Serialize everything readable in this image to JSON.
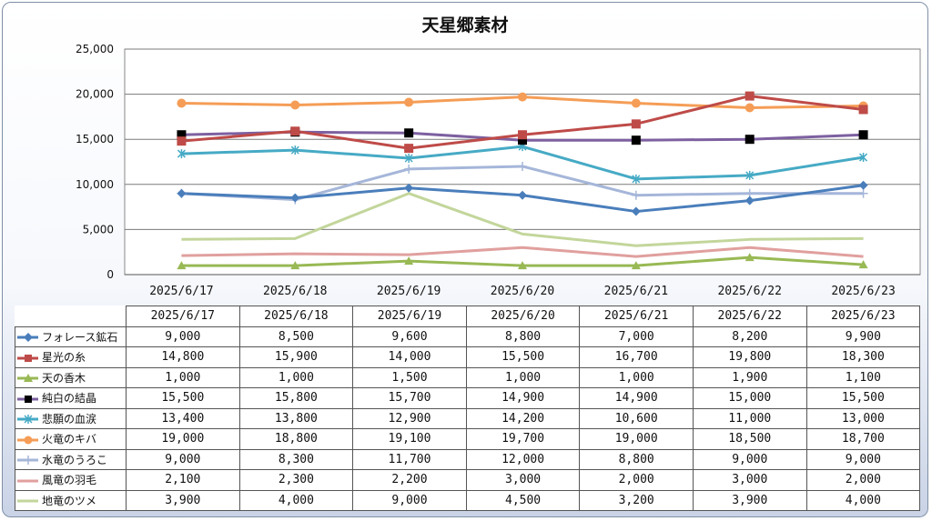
{
  "chart_data": {
    "type": "line",
    "title": "天星郷素材",
    "categories": [
      "2025/6/17",
      "2025/6/18",
      "2025/6/19",
      "2025/6/20",
      "2025/6/21",
      "2025/6/22",
      "2025/6/23"
    ],
    "ylim": [
      0,
      25000
    ],
    "yticks": [
      "0",
      "5,000",
      "10,000",
      "15,000",
      "20,000",
      "25,000"
    ],
    "ytick_values": [
      0,
      5000,
      10000,
      15000,
      20000,
      25000
    ],
    "grid": true,
    "legend": "data-table",
    "series": [
      {
        "name": "フォレース鉱石",
        "color": "#4a7ebb",
        "marker": "diamond",
        "values": [
          9000,
          8500,
          9600,
          8800,
          7000,
          8200,
          9900
        ],
        "labels": [
          "9,000",
          "8,500",
          "9,600",
          "8,800",
          "7,000",
          "8,200",
          "9,900"
        ]
      },
      {
        "name": "星光の糸",
        "color": "#be4b48",
        "marker": "square",
        "values": [
          14800,
          15900,
          14000,
          15500,
          16700,
          19800,
          18300
        ],
        "labels": [
          "14,800",
          "15,900",
          "14,000",
          "15,500",
          "16,700",
          "19,800",
          "18,300"
        ]
      },
      {
        "name": "天の香木",
        "color": "#98b954",
        "marker": "triangle",
        "values": [
          1000,
          1000,
          1500,
          1000,
          1000,
          1900,
          1100
        ],
        "labels": [
          "1,000",
          "1,000",
          "1,500",
          "1,000",
          "1,000",
          "1,900",
          "1,100"
        ]
      },
      {
        "name": "純白の結晶",
        "color": "#7d60a0",
        "marker": "blacksquare",
        "values": [
          15500,
          15800,
          15700,
          14900,
          14900,
          15000,
          15500
        ],
        "labels": [
          "15,500",
          "15,800",
          "15,700",
          "14,900",
          "14,900",
          "15,000",
          "15,500"
        ]
      },
      {
        "name": "悲願の血涙",
        "color": "#46aac5",
        "marker": "star",
        "values": [
          13400,
          13800,
          12900,
          14200,
          10600,
          11000,
          13000
        ],
        "labels": [
          "13,400",
          "13,800",
          "12,900",
          "14,200",
          "10,600",
          "11,000",
          "13,000"
        ]
      },
      {
        "name": "火竜のキバ",
        "color": "#f59d56",
        "marker": "circle",
        "values": [
          19000,
          18800,
          19100,
          19700,
          19000,
          18500,
          18700
        ],
        "labels": [
          "19,000",
          "18,800",
          "19,100",
          "19,700",
          "19,000",
          "18,500",
          "18,700"
        ]
      },
      {
        "name": "水竜のうろこ",
        "color": "#a5b6d9",
        "marker": "plus",
        "values": [
          9000,
          8300,
          11700,
          12000,
          8800,
          9000,
          9000
        ],
        "labels": [
          "9,000",
          "8,300",
          "11,700",
          "12,000",
          "8,800",
          "9,000",
          "9,000"
        ]
      },
      {
        "name": "風竜の羽毛",
        "color": "#e0a09e",
        "marker": "none",
        "values": [
          2100,
          2300,
          2200,
          3000,
          2000,
          3000,
          2000
        ],
        "labels": [
          "2,100",
          "2,300",
          "2,200",
          "3,000",
          "2,000",
          "3,000",
          "2,000"
        ]
      },
      {
        "name": "地竜のツメ",
        "color": "#c3d69b",
        "marker": "none",
        "values": [
          3900,
          4000,
          9000,
          4500,
          3200,
          3900,
          4000
        ],
        "labels": [
          "3,900",
          "4,000",
          "9,000",
          "4,500",
          "3,200",
          "3,900",
          "4,000"
        ]
      }
    ]
  }
}
